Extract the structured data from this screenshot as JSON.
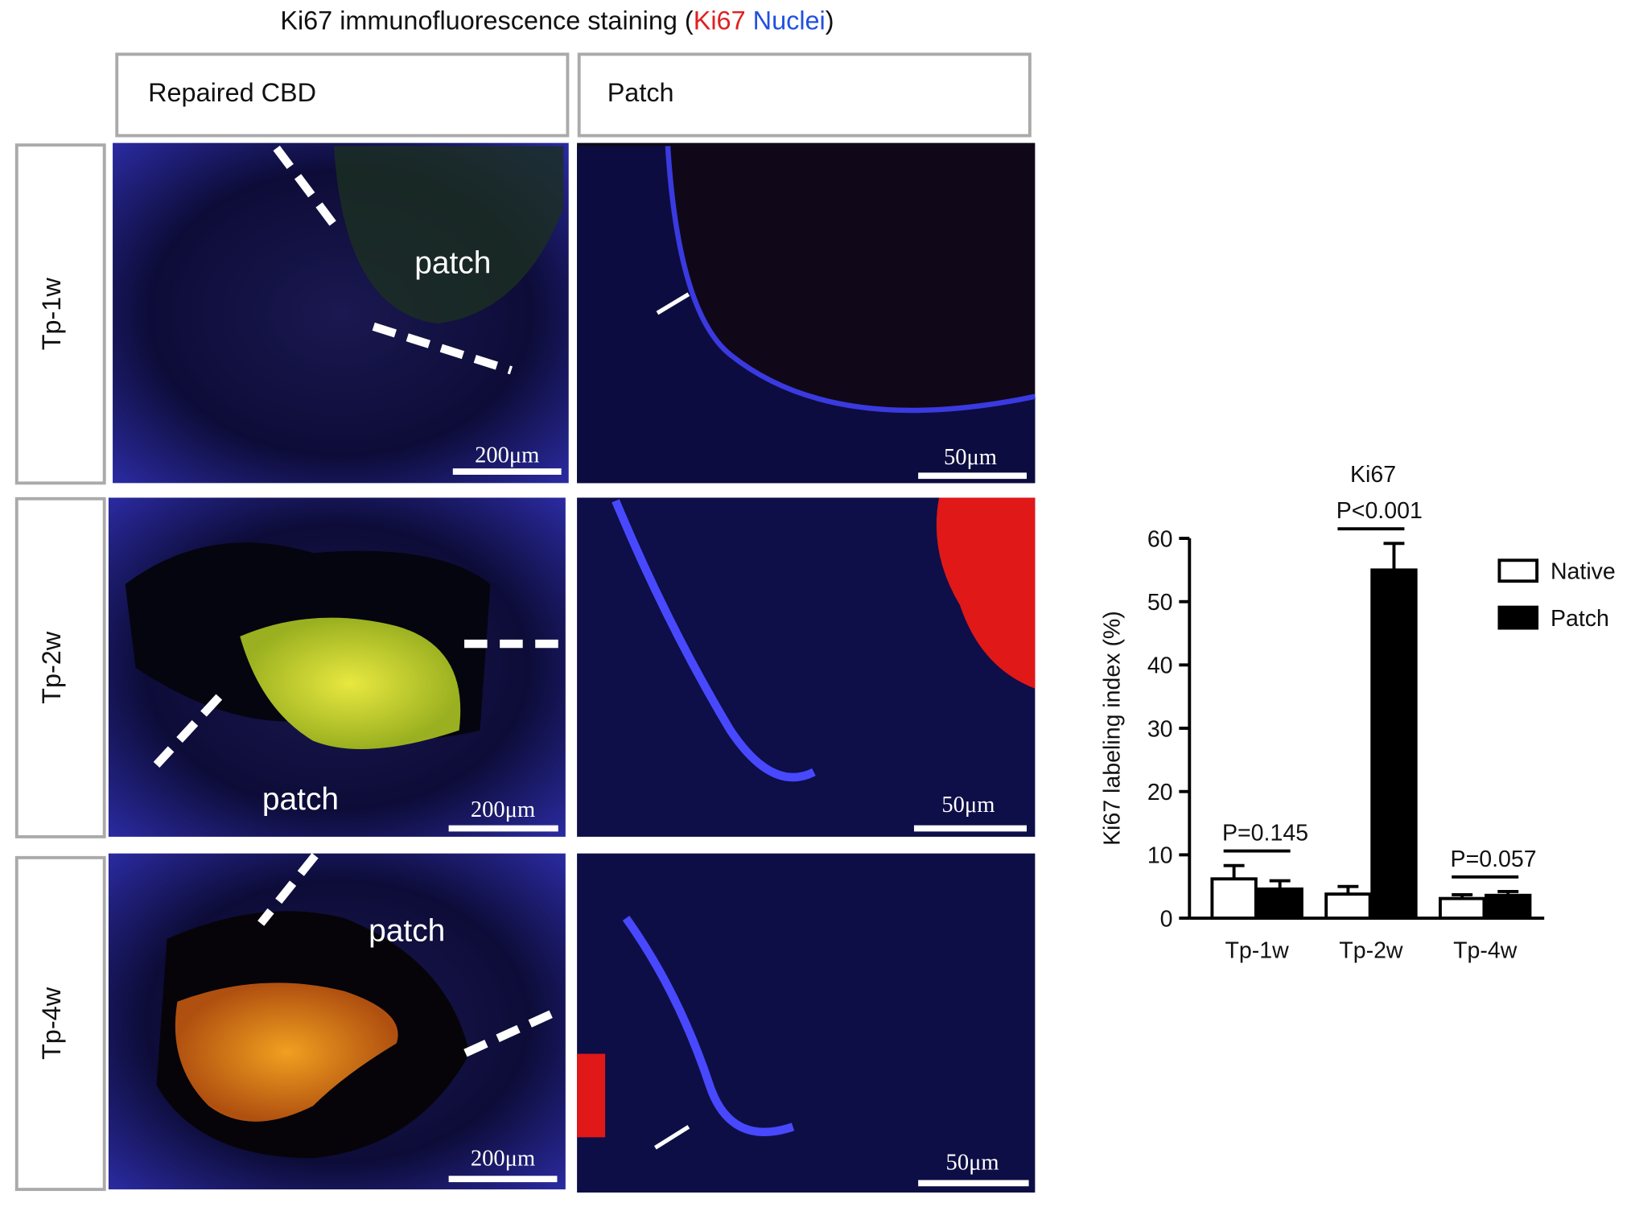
{
  "title": {
    "prefix": "Ki67 immunofluorescence staining (",
    "ki67": "Ki67",
    "nuclei": "Nuclei",
    "suffix": ")"
  },
  "columns": [
    "Repaired CBD",
    "Patch"
  ],
  "rows": [
    "Tp-1w",
    "Tp-2w",
    "Tp-4w"
  ],
  "panels": [
    [
      {
        "label": "patch",
        "scale": "200μm"
      },
      {
        "scale": "50μm"
      }
    ],
    [
      {
        "label": "patch",
        "scale": "200μm"
      },
      {
        "scale": "50μm"
      }
    ],
    [
      {
        "label": "patch",
        "scale": "200μm"
      },
      {
        "scale": "50μm"
      }
    ]
  ],
  "chart_data": {
    "type": "bar",
    "title": "Ki67",
    "y_label": "Ki67 labeling index (%)",
    "categories": [
      "Tp-1w",
      "Tp-2w",
      "Tp-4w"
    ],
    "series": [
      {
        "name": "Native",
        "color": "#ffffff",
        "values": [
          6.2,
          3.8,
          3.1
        ],
        "errors": [
          2.1,
          1.2,
          0.6
        ]
      },
      {
        "name": "Patch",
        "color": "#000000",
        "values": [
          4.6,
          55,
          3.6
        ],
        "errors": [
          1.3,
          4.2,
          0.6
        ]
      }
    ],
    "annotations": [
      "P=0.145",
      "P<0.001",
      "P=0.057"
    ],
    "ylim": [
      0,
      60
    ],
    "yticks": [
      0,
      10,
      20,
      30,
      40,
      50,
      60
    ],
    "legend": "right"
  }
}
